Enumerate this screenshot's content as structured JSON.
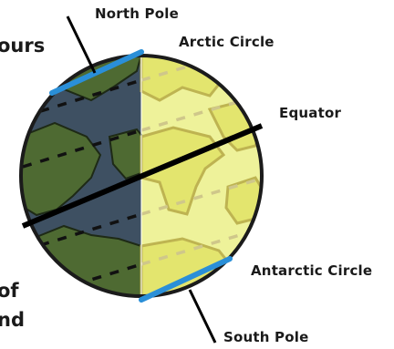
{
  "labels": {
    "north_pole": "North Pole",
    "arctic_circle": "Arctic Circle",
    "equator": "Equator",
    "antarctic_circle": "Antarctic Circle",
    "south_pole": "South Pole"
  },
  "cropped_text": [
    "ours",
    "of",
    "nd"
  ],
  "colors": {
    "night": "#3e5062",
    "day": "#eef29a",
    "night_land": "#4e6a32",
    "day_land": "#e2e46a",
    "circle_lines": "#2a8fd8",
    "axis": "#000000"
  }
}
